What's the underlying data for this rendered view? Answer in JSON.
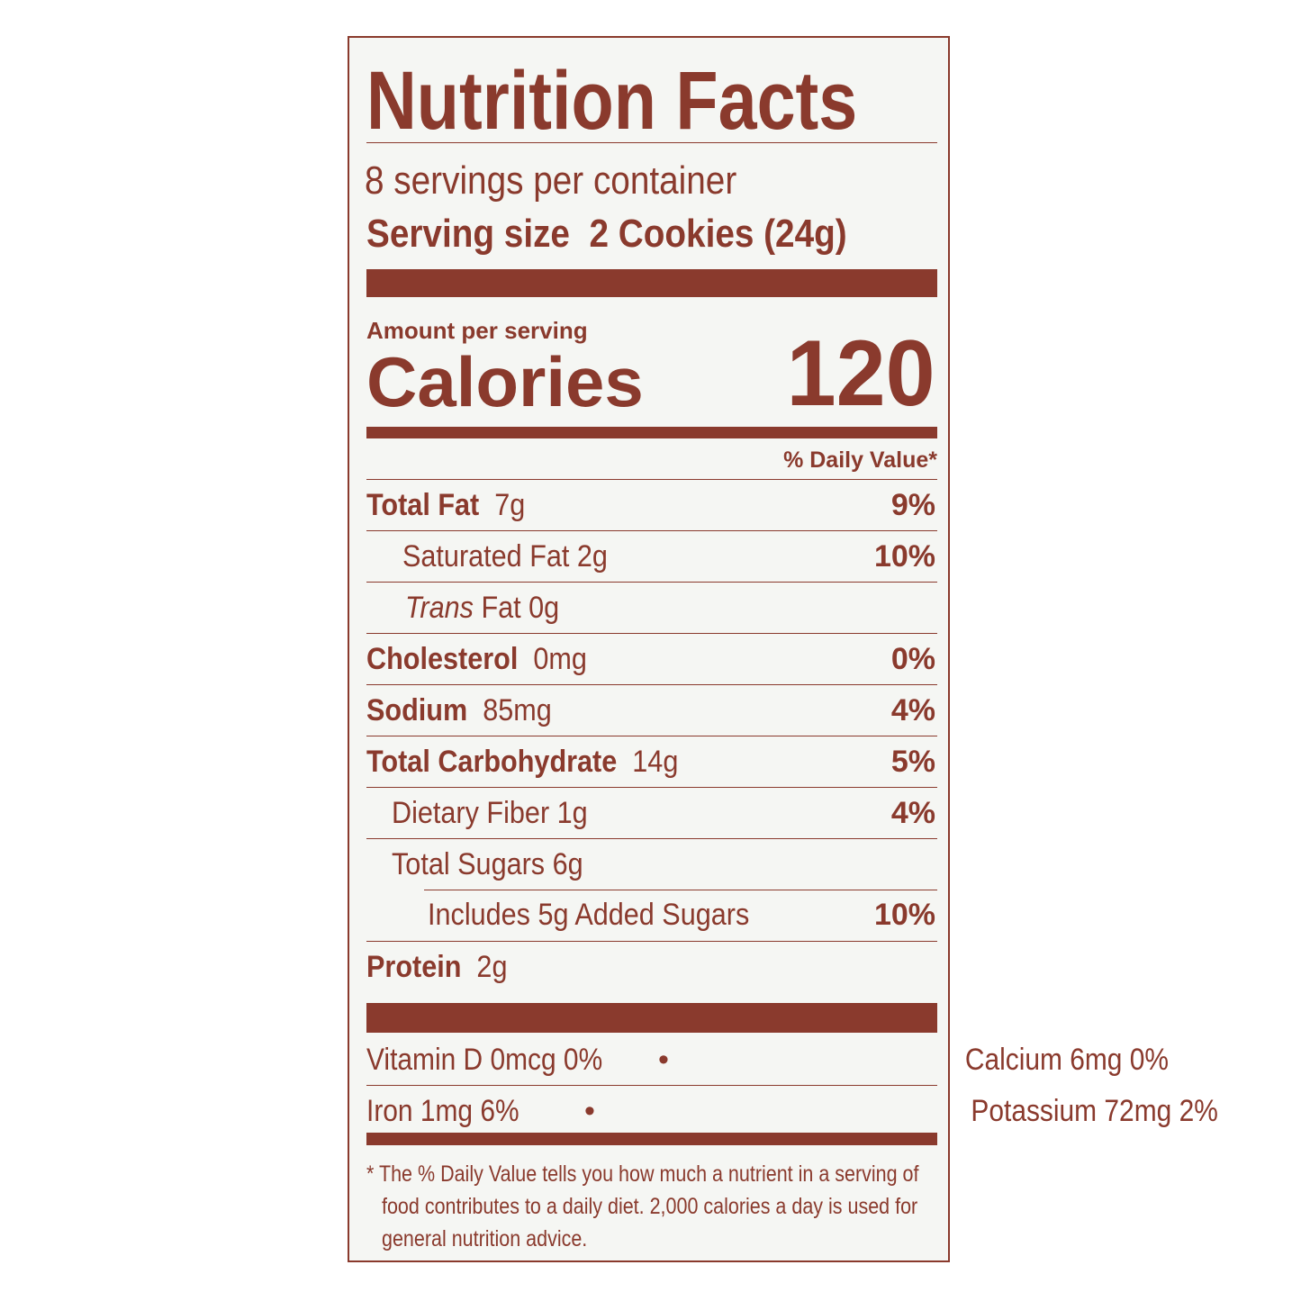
{
  "title": "Nutrition Facts",
  "servings_per_container": "8 servings per container",
  "serving_size_label": "Serving size",
  "serving_size_value": "2 Cookies (24g)",
  "amount_per_serving": "Amount per serving",
  "calories_label": "Calories",
  "calories_value": "120",
  "daily_value_header": "% Daily Value*",
  "nutrients": [
    {
      "name": "Total Fat",
      "amount": "7g",
      "dv": "9%"
    },
    {
      "name": "Saturated Fat 2g",
      "amount": "",
      "dv": "10%"
    },
    {
      "name_italic": "Trans",
      "name": " Fat 0g",
      "dv": ""
    },
    {
      "name": "Cholesterol",
      "amount": "0mg",
      "dv": "0%"
    },
    {
      "name": "Sodium",
      "amount": "85mg",
      "dv": "4%"
    },
    {
      "name": "Total Carbohydrate",
      "amount": "14g",
      "dv": "5%"
    },
    {
      "name": "Dietary Fiber 1g",
      "amount": "",
      "dv": "4%"
    },
    {
      "name": "Total Sugars 6g",
      "amount": "",
      "dv": ""
    },
    {
      "name": "Includes 5g Added Sugars",
      "amount": "",
      "dv": "10%"
    },
    {
      "name": "Protein",
      "amount": "2g",
      "dv": ""
    }
  ],
  "vitamins": [
    {
      "text": "Vitamin D 0mcg  0%"
    },
    {
      "text": "Calcium 6mg  0%"
    },
    {
      "text": "Iron 1mg  6%"
    },
    {
      "text": "Potassium 72mg  2%"
    }
  ],
  "bullet": "•",
  "footnote": [
    "* The % Daily Value tells you how much a nutrient in a serving of",
    "food contributes to a daily diet. 2,000 calories a day is used for",
    "general nutrition advice."
  ],
  "colors": {
    "ink": "#8a3a2d",
    "label_bg": "#f5f6f3"
  }
}
